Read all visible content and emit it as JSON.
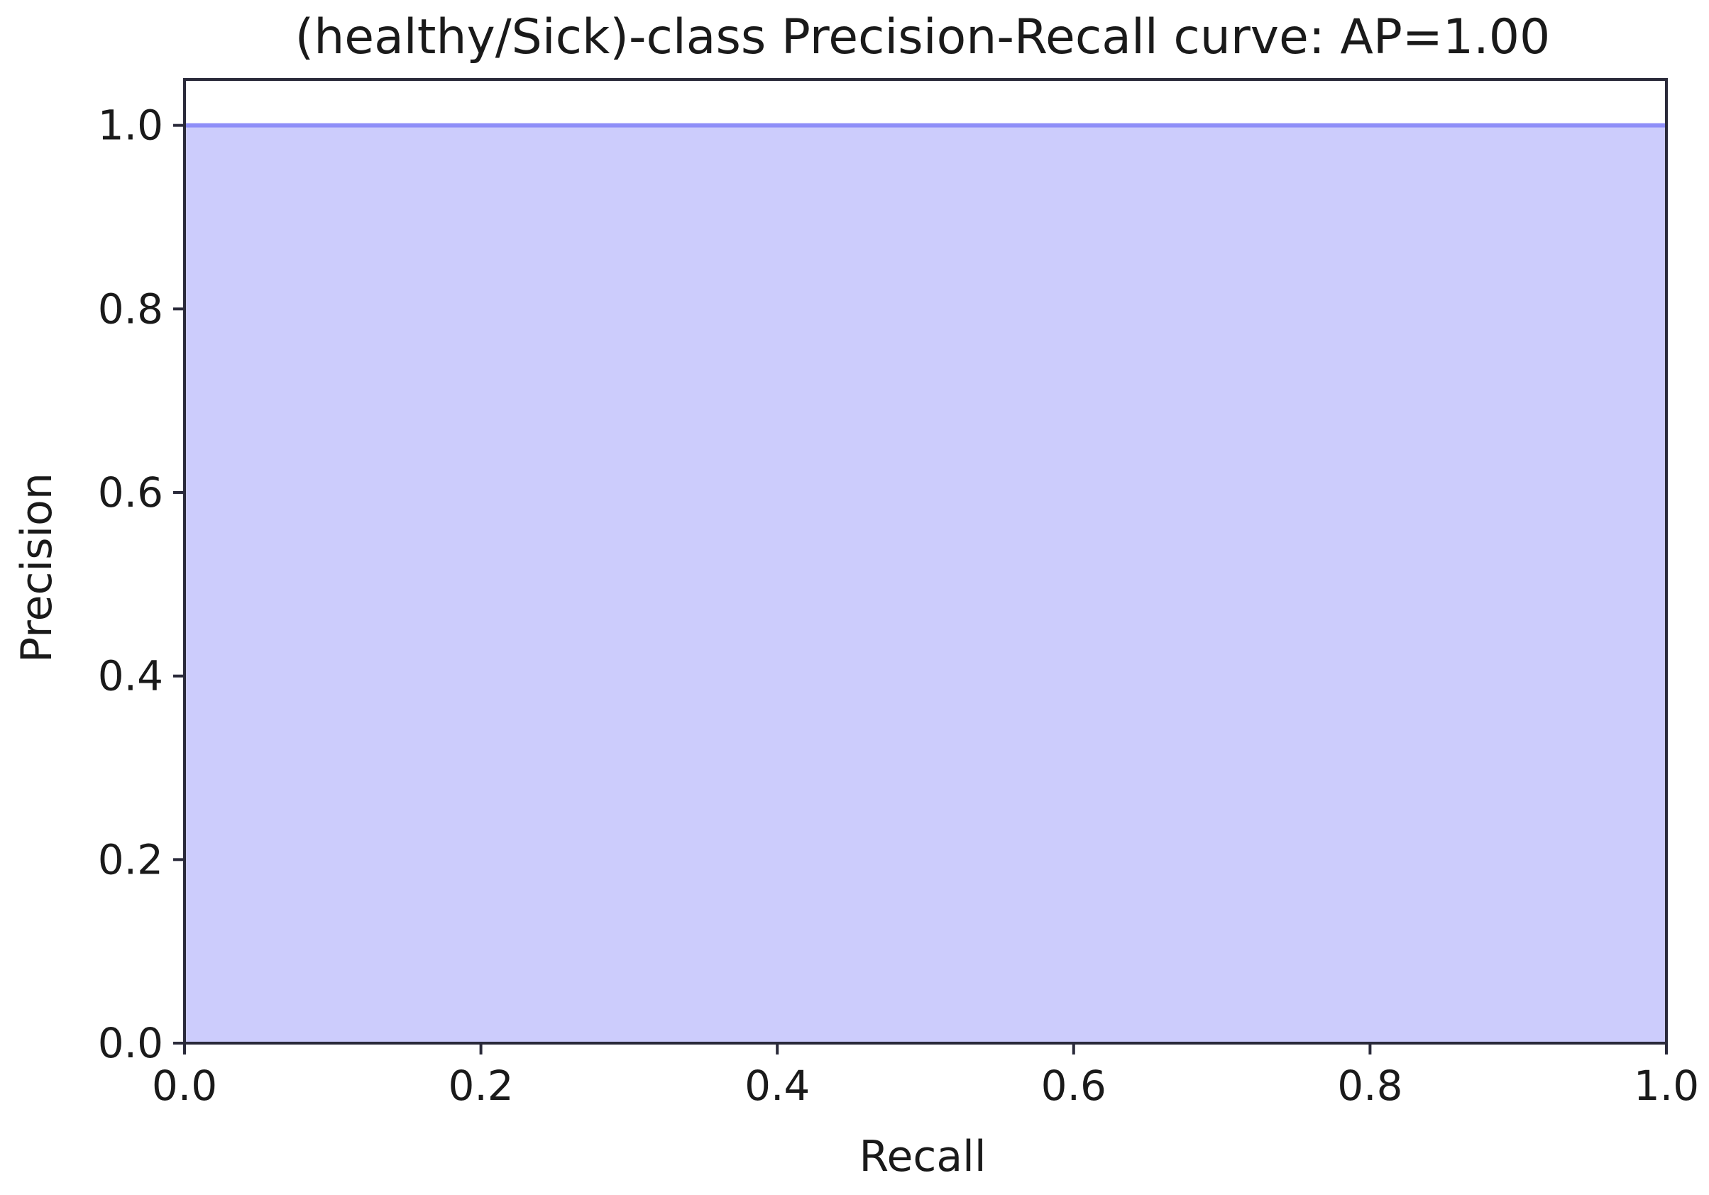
{
  "chart_data": {
    "type": "area",
    "title": "(healthy/Sick)-class Precision-Recall curve: AP=1.00",
    "xlabel": "Recall",
    "ylabel": "Precision",
    "xlim": [
      0.0,
      1.0
    ],
    "ylim": [
      0.0,
      1.05
    ],
    "x_ticks": [
      "0.0",
      "0.2",
      "0.4",
      "0.6",
      "0.8",
      "1.0"
    ],
    "y_ticks": [
      "0.0",
      "0.2",
      "0.4",
      "0.6",
      "0.8",
      "1.0"
    ],
    "grid": false,
    "series": [
      {
        "x": [
          0.0,
          1.0
        ],
        "y": [
          1.0,
          1.0
        ],
        "color": "#0000ff",
        "fill_alpha": 0.2
      }
    ],
    "colors": {
      "line": "#8e8ef8",
      "fill": "#ccccfc",
      "axes": "#2a2a3a"
    }
  }
}
